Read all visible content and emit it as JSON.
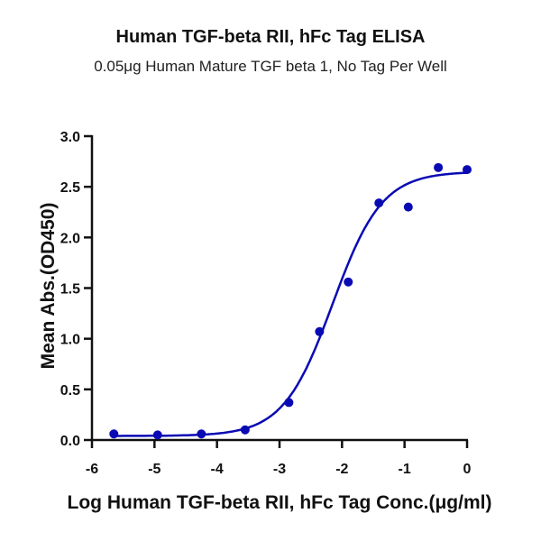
{
  "chart_data": {
    "type": "scatter",
    "title": "Human TGF-beta RII, hFc Tag  ELISA",
    "subtitle": "0.05μg Human Mature TGF beta 1, No Tag Per Well",
    "xlabel": "Log  Human TGF-beta RII, hFc Tag Conc.(μg/ml)",
    "ylabel": "Mean Abs.(OD450)",
    "xlim": [
      -6,
      0
    ],
    "ylim": [
      0,
      3.0
    ],
    "xticks": [
      "-6",
      "-5",
      "-4",
      "-3",
      "-2",
      "-1",
      "0"
    ],
    "yticks": [
      "0.0",
      "0.5",
      "1.0",
      "1.5",
      "2.0",
      "2.5",
      "3.0"
    ],
    "grid": false,
    "color": "#0a0ab4",
    "points": {
      "x": [
        -5.65,
        -4.95,
        -4.25,
        -3.55,
        -2.85,
        -2.36,
        -1.9,
        -1.41,
        -0.94,
        -0.46,
        0.0
      ],
      "y": [
        0.06,
        0.05,
        0.06,
        0.1,
        0.37,
        1.07,
        1.56,
        2.34,
        2.3,
        2.69,
        2.67
      ]
    },
    "fit": {
      "model": "4PL",
      "bottom": 0.04,
      "top": 2.65,
      "logEC50": -2.15,
      "hill": 1.1
    }
  }
}
